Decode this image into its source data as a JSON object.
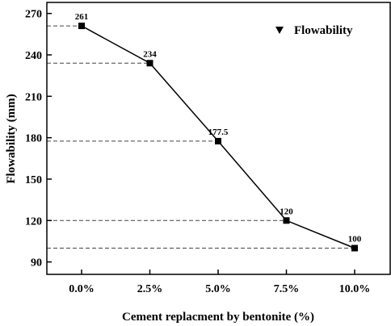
{
  "chart_data": {
    "type": "line",
    "categories": [
      "0.0%",
      "2.5%",
      "5.0%",
      "7.5%",
      "10.0%"
    ],
    "series": [
      {
        "name": "Flowability",
        "values": [
          261,
          234,
          177.5,
          120,
          100
        ]
      }
    ],
    "data_labels": [
      "261",
      "234",
      "177.5",
      "120",
      "100"
    ],
    "xlabel": "Cement replacment by bentonite (%)",
    "ylabel": "Flowability (mm)",
    "ylim": [
      81,
      278
    ],
    "yticks": [
      90,
      120,
      150,
      180,
      210,
      240,
      270
    ],
    "ytick_labels": [
      "90",
      "120",
      "150",
      "180",
      "210",
      "240",
      "270"
    ],
    "grid": false,
    "reference_lines": "dashed horizontal lines from the y-axis to each data point",
    "legend": {
      "position": "top-right",
      "marker": "down-triangle",
      "label": "Flowability"
    },
    "colors": {
      "line": "#000000",
      "marker": "#000000",
      "dashed": "#444444"
    }
  }
}
